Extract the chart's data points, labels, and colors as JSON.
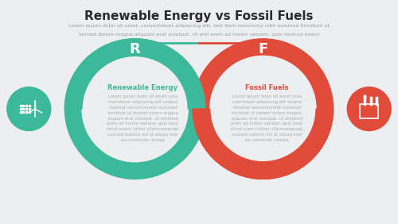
{
  "title": "Renewable Energy vs Fossil Fuels",
  "subtitle_line1": "Lorem ipsum dolor sit amet, consectetuer adipiscing elit, sed diam nonummy nibh euismod tincidunt ut",
  "subtitle_line2": "laoreet dolore magna aliquam erat volutpat. Ut wisi enim ad minim veniam, quis nostrud exerci",
  "bg_color": "#edeef0",
  "green_color": "#3cb99a",
  "red_color": "#e04b3a",
  "white": "#ffffff",
  "title_color": "#2a2a2a",
  "subtitle_color": "#999999",
  "green_text_color": "#3cb99a",
  "red_text_color": "#e04b3a",
  "body_text_color": "#aaaaaa",
  "left_label": "Renewable Energy",
  "right_label": "Fossil Fuels",
  "left_letter": "R",
  "right_letter": "F",
  "body_text": "Lorem ipsum dolor sit amet cona\nnsectetuer adipiscing elit sedpra\nitdamar nonummynibh euismod\ntncidunt ut laoreet dolore magna\nalquam erat volutpat. Ut wislared\nenim ad minim veniam, quis nose\nstrud exerci tation ullamcorperapi\nsuscipit lobortis nsl ut alquip exer\nea commodo conseq"
}
